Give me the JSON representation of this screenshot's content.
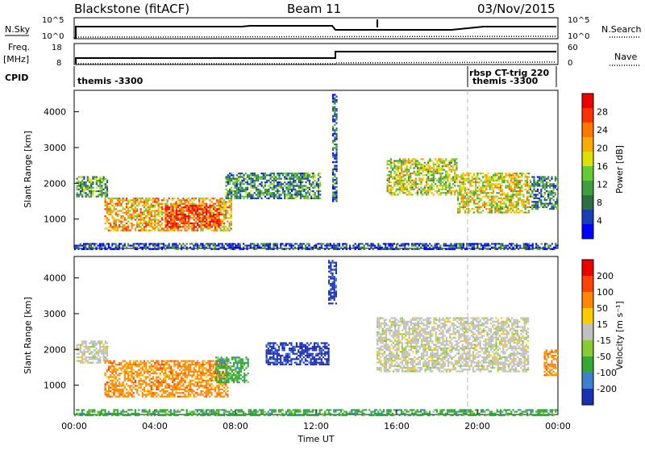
{
  "header": {
    "station": "Blackstone (fitACF)",
    "beam": "Beam 11",
    "date": "03/Nov/2015"
  },
  "top_panels": {
    "left_labels": {
      "nsky": "N.Sky",
      "freq_line1": "Freq.",
      "freq_line2": "[MHz]",
      "cpid": "CPID"
    },
    "right_labels": {
      "nsearch": "N.Search",
      "nave": "Nave"
    },
    "noise_ticks_left": [
      "10^5",
      "10^0"
    ],
    "noise_ticks_right": [
      "10^5",
      "10^0"
    ],
    "freq_ticks_left": [
      "18",
      "8"
    ],
    "nave_ticks_right": [
      "60",
      "0"
    ],
    "cpid_labels": [
      "themis -3300",
      "rbsp CT-trig 220",
      "themis -3300"
    ]
  },
  "chart_data": [
    {
      "type": "heatmap",
      "name": "power",
      "ylabel": "Slant Range [km]",
      "xlabel": "",
      "xlim": [
        0,
        24
      ],
      "ylim": [
        180,
        4600
      ],
      "yticks": [
        "1000",
        "2000",
        "3000",
        "4000"
      ],
      "colorbar": {
        "label": "Power [dB]",
        "ticks": [
          "28",
          "24",
          "20",
          "16",
          "12",
          "8",
          "4"
        ],
        "colors": [
          "#0000ff",
          "#1a3fb4",
          "#2f6f3f",
          "#3f9f3f",
          "#66cc33",
          "#e0e000",
          "#ffaa00",
          "#ff7700",
          "#ff3300",
          "#ee0000"
        ]
      },
      "regions": [
        {
          "t0": 0.1,
          "t1": 1.6,
          "r0": 1650,
          "r1": 2200,
          "level": 0.35
        },
        {
          "t0": 1.5,
          "t1": 7.8,
          "r0": 700,
          "r1": 1600,
          "level": 0.65
        },
        {
          "t0": 4.5,
          "t1": 7.2,
          "r0": 800,
          "r1": 1400,
          "level": 0.9
        },
        {
          "t0": 7.5,
          "t1": 12.2,
          "r0": 1600,
          "r1": 2300,
          "level": 0.3
        },
        {
          "t0": 12.8,
          "t1": 13.0,
          "r0": 1500,
          "r1": 4500,
          "level": 0.2
        },
        {
          "t0": 15.5,
          "t1": 19.0,
          "r0": 1700,
          "r1": 2700,
          "level": 0.5
        },
        {
          "t0": 19.0,
          "t1": 22.6,
          "r0": 1200,
          "r1": 2300,
          "level": 0.55
        },
        {
          "t0": 22.6,
          "t1": 24.0,
          "r0": 1300,
          "r1": 2200,
          "level": 0.3
        },
        {
          "t0": 0.0,
          "t1": 24.0,
          "r0": 180,
          "r1": 330,
          "level": 0.15
        }
      ]
    },
    {
      "type": "heatmap",
      "name": "velocity",
      "ylabel": "Slant Range [km]",
      "xlabel": "Time UT",
      "xlim": [
        0,
        24
      ],
      "ylim": [
        180,
        4600
      ],
      "yticks": [
        "1000",
        "2000",
        "3000",
        "4000"
      ],
      "xticks": [
        "00:00",
        "04:00",
        "08:00",
        "12:00",
        "16:00",
        "20:00",
        "00:00"
      ],
      "colorbar": {
        "label": "Velocity [m s⁻¹]",
        "ticks": [
          "200",
          "100",
          "50",
          "15",
          "-15",
          "-50",
          "-100",
          "-200"
        ],
        "colors": [
          "#1a2fb4",
          "#3f7fcf",
          "#33aa33",
          "#88cc33",
          "#c0c0c0",
          "#ffcc00",
          "#ff8800",
          "#ff4400",
          "#ee0000"
        ]
      },
      "regions": [
        {
          "t0": 0.1,
          "t1": 1.6,
          "r0": 1650,
          "r1": 2250,
          "level": "gray"
        },
        {
          "t0": 1.5,
          "t1": 7.6,
          "r0": 700,
          "r1": 1700,
          "level": "orange"
        },
        {
          "t0": 7.0,
          "t1": 8.6,
          "r0": 1100,
          "r1": 1800,
          "level": "green"
        },
        {
          "t0": 9.5,
          "t1": 12.6,
          "r0": 1600,
          "r1": 2200,
          "level": "blue"
        },
        {
          "t0": 12.6,
          "t1": 13.0,
          "r0": 3300,
          "r1": 4500,
          "level": "blue"
        },
        {
          "t0": 15.0,
          "t1": 22.5,
          "r0": 1400,
          "r1": 2900,
          "level": "gray"
        },
        {
          "t0": 23.3,
          "t1": 24.0,
          "r0": 1300,
          "r1": 2000,
          "level": "orange"
        },
        {
          "t0": 0.0,
          "t1": 24.0,
          "r0": 180,
          "r1": 330,
          "level": "green"
        }
      ]
    }
  ]
}
